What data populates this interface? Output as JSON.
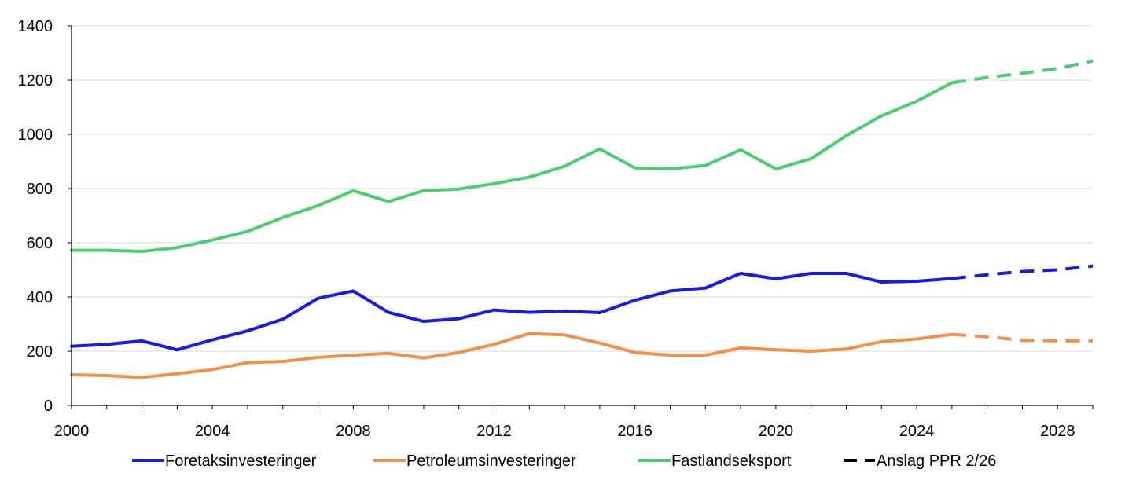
{
  "chart_data": {
    "type": "line",
    "title": "",
    "xlabel": "",
    "ylabel": "",
    "xlim": [
      2000,
      2029
    ],
    "ylim": [
      0,
      1400
    ],
    "x_ticks": [
      2000,
      2004,
      2008,
      2012,
      2016,
      2020,
      2024,
      2028
    ],
    "y_ticks": [
      0,
      200,
      400,
      600,
      800,
      1000,
      1200,
      1400
    ],
    "grid": "horizontal",
    "legend_position": "bottom",
    "forecast_from": 2025,
    "forecast_label": "Anslag PPR 2/26",
    "x": [
      2000,
      2001,
      2002,
      2003,
      2004,
      2005,
      2006,
      2007,
      2008,
      2009,
      2010,
      2011,
      2012,
      2013,
      2014,
      2015,
      2016,
      2017,
      2018,
      2019,
      2020,
      2021,
      2022,
      2023,
      2024,
      2025,
      2026,
      2027,
      2028,
      2029
    ],
    "series": [
      {
        "name": "Foretaksinvesteringer",
        "color": "#1a1ae6",
        "values": [
          218,
          225,
          238,
          205,
          242,
          275,
          318,
          395,
          422,
          343,
          310,
          320,
          352,
          343,
          348,
          342,
          388,
          422,
          433,
          487,
          467,
          487,
          487,
          455,
          458,
          468,
          482,
          494,
          500,
          514
        ]
      },
      {
        "name": "Petroleumsinvesteringer",
        "color": "#f0904a",
        "values": [
          113,
          110,
          103,
          117,
          132,
          158,
          162,
          177,
          185,
          192,
          175,
          195,
          225,
          265,
          260,
          230,
          195,
          185,
          185,
          212,
          205,
          200,
          208,
          235,
          245,
          262,
          253,
          240,
          238,
          238
        ]
      },
      {
        "name": "Fastlandseksport",
        "color": "#4ccd72",
        "values": [
          572,
          572,
          568,
          582,
          610,
          642,
          693,
          737,
          792,
          752,
          792,
          798,
          818,
          842,
          882,
          946,
          876,
          872,
          885,
          943,
          872,
          910,
          995,
          1068,
          1122,
          1190,
          1210,
          1225,
          1243,
          1270
        ]
      }
    ]
  },
  "forecast_legend_color": "#000000"
}
